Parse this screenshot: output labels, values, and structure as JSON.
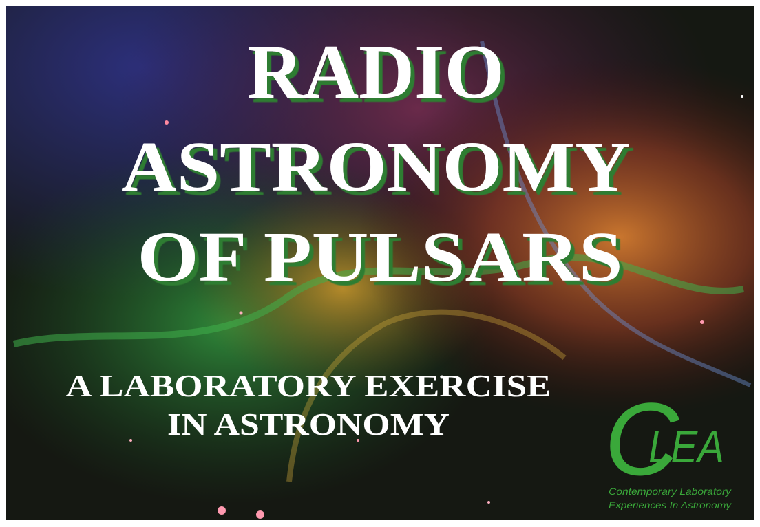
{
  "title": {
    "lines": [
      "RADIO",
      "ASTRONOMY",
      "OF PULSARS"
    ]
  },
  "subtitle": {
    "lines": [
      "A LABORATORY EXERCISE",
      "IN ASTRONOMY"
    ]
  },
  "logo": {
    "mark": "C",
    "letters": "LEA",
    "caption": [
      "Contemporary Laboratory",
      "Experiences In Astronomy"
    ]
  }
}
